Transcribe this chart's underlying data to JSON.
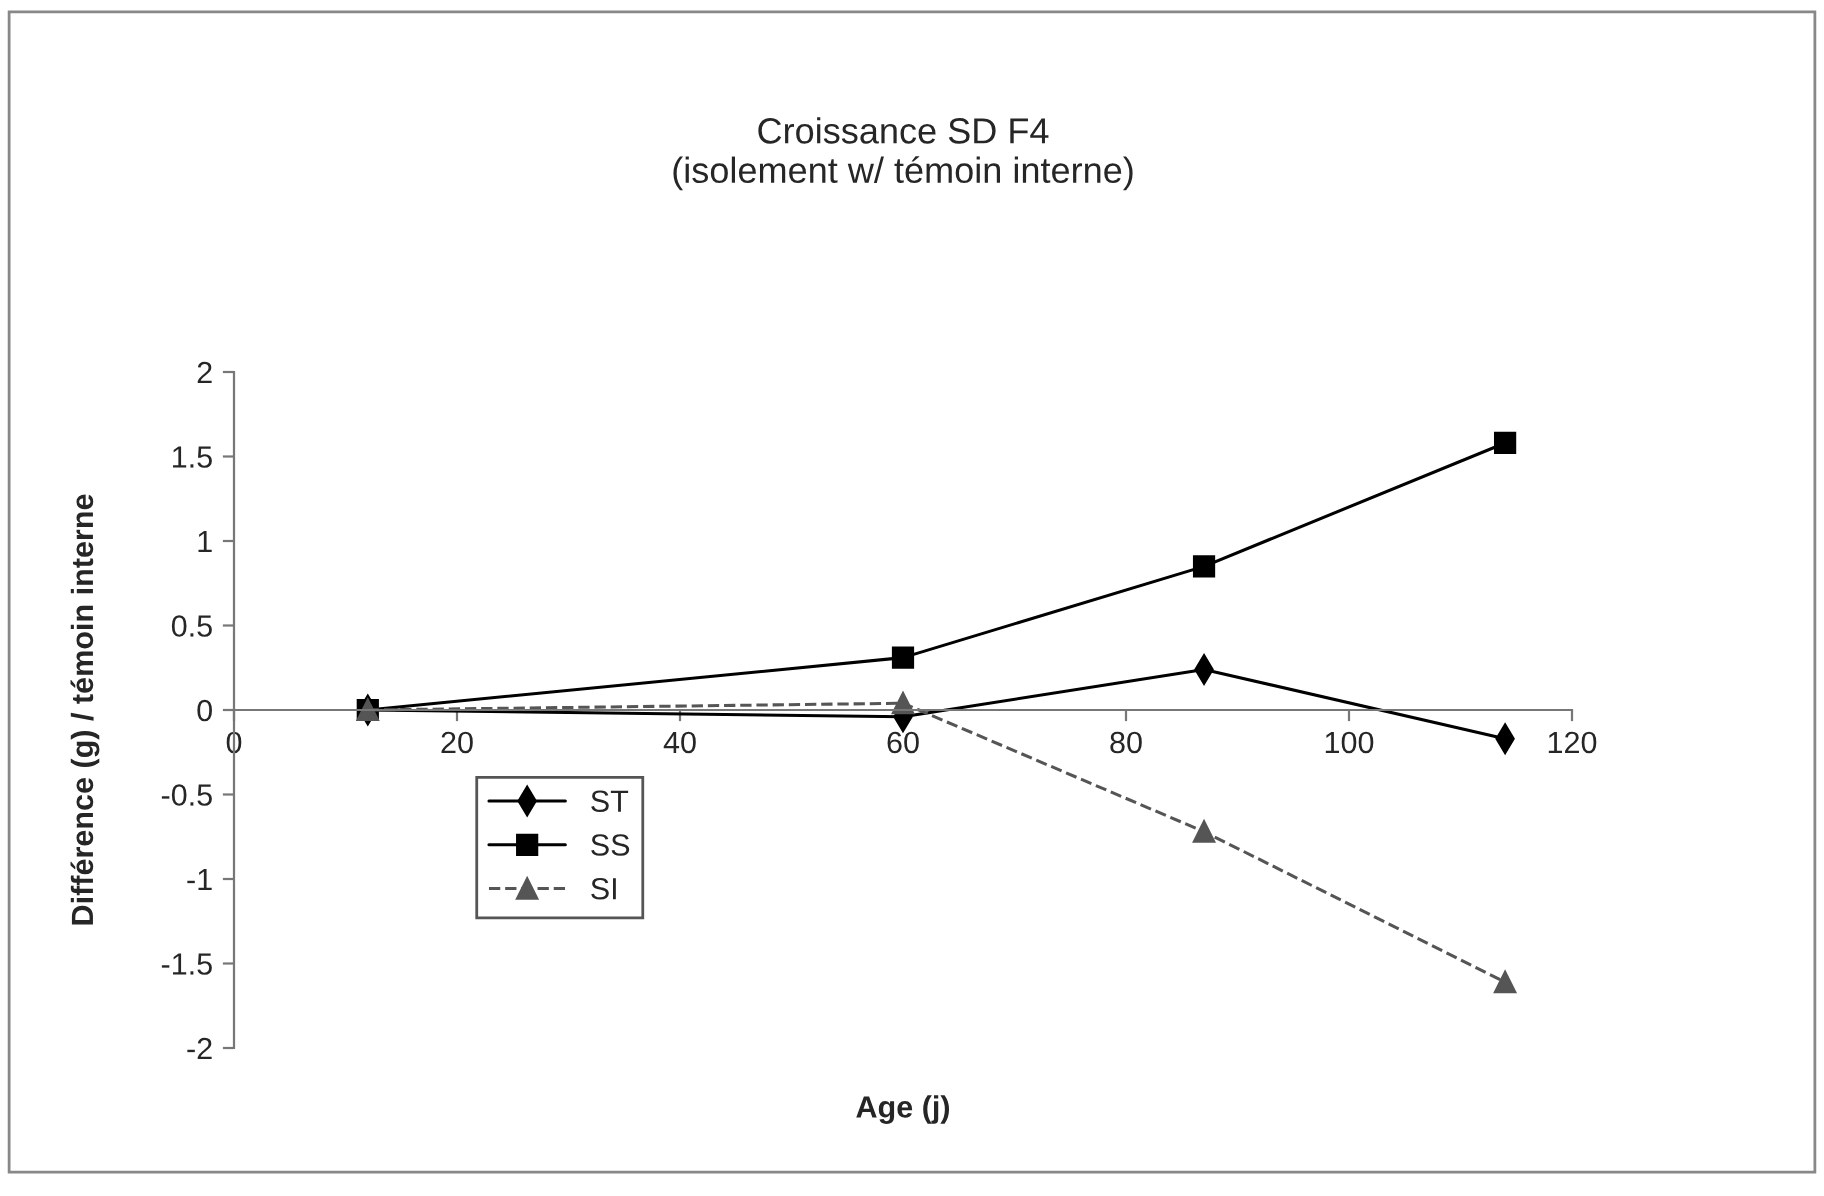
{
  "chart_data": {
    "type": "line",
    "title": "Croissance SD F4\n(isolement w/ témoin interne)",
    "xlabel": "Age (j)",
    "ylabel": "Différence (g) / témoin interne",
    "x": [
      12,
      60,
      87,
      114
    ],
    "series": [
      {
        "name": "ST",
        "color": "#000000",
        "marker": "diamond",
        "line_style": "solid",
        "values": [
          0,
          -0.04,
          0.24,
          -0.17
        ]
      },
      {
        "name": "SS",
        "color": "#000000",
        "marker": "square",
        "line_style": "solid",
        "values": [
          0,
          0.31,
          0.85,
          1.58
        ]
      },
      {
        "name": "SI",
        "color": "#555555",
        "marker": "triangle",
        "line_style": "dashed",
        "values": [
          0,
          0.04,
          -0.72,
          -1.61
        ]
      }
    ],
    "xlim": [
      0,
      120
    ],
    "xticks": [
      0,
      20,
      40,
      60,
      80,
      100,
      120
    ],
    "ylim": [
      -2,
      2
    ],
    "yticks": [
      -2,
      -1.5,
      -1,
      -0.5,
      0,
      0.5,
      1,
      1.5,
      2
    ],
    "grid": false,
    "legend": "bottom left"
  }
}
